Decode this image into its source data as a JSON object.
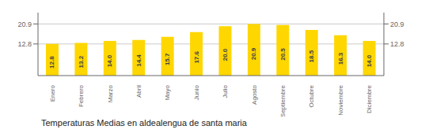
{
  "chart_data": {
    "type": "bar",
    "title": "Temperaturas Medias en aldealengua de santa maria",
    "categories": [
      "Enero",
      "Febrero",
      "Marzo",
      "Abril",
      "Mayo",
      "Junio",
      "Julio",
      "Agosto",
      "Septiembre",
      "Octubre",
      "Noviembre",
      "Diciembre"
    ],
    "values": [
      12.8,
      13.2,
      14.0,
      14.4,
      15.7,
      17.6,
      20.0,
      20.9,
      20.5,
      18.5,
      16.3,
      14.0
    ],
    "value_labels": [
      "12.8",
      "13.2",
      "14.0",
      "14.4",
      "15.7",
      "17.6",
      "20.0",
      "20.9",
      "20.5",
      "18.5",
      "16.3",
      "14.0"
    ],
    "color": "#FFD700",
    "ylim": [
      0,
      25.498
    ],
    "yticks": [
      12.8,
      20.9
    ],
    "y2lim": [
      0,
      25.498
    ],
    "y2ticks": [
      12.8,
      20.9
    ],
    "grid": true,
    "data_labels": true
  }
}
